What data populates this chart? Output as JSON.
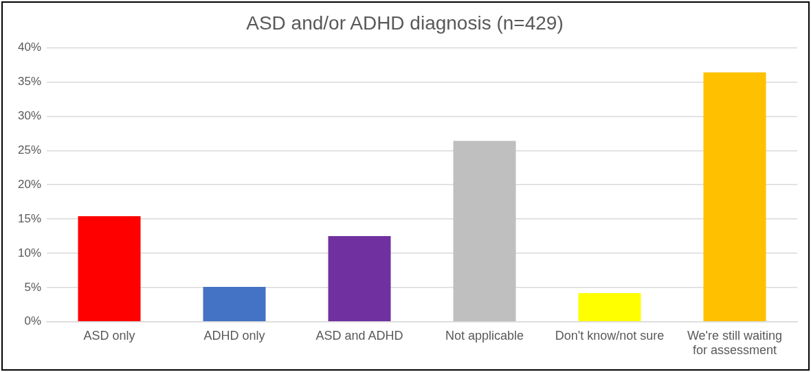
{
  "chart_data": {
    "type": "bar",
    "title": "ASD and/or ADHD diagnosis (n=429)",
    "categories": [
      "ASD only",
      "ADHD only",
      "ASD and ADHD",
      "Not applicable",
      "Don't know/not sure",
      "We're still waiting for assessment"
    ],
    "values": [
      15.4,
      5.1,
      12.5,
      26.4,
      4.2,
      36.4
    ],
    "colors": [
      "#ff0000",
      "#4472c4",
      "#7030a0",
      "#bfbfbf",
      "#ffff00",
      "#ffc000"
    ],
    "ylim": [
      0,
      40
    ],
    "yticks": [
      {
        "value": 0,
        "label": "0%"
      },
      {
        "value": 5,
        "label": "5%"
      },
      {
        "value": 10,
        "label": "10%"
      },
      {
        "value": 15,
        "label": "15%"
      },
      {
        "value": 20,
        "label": "20%"
      },
      {
        "value": 25,
        "label": "25%"
      },
      {
        "value": 30,
        "label": "30%"
      },
      {
        "value": 35,
        "label": "35%"
      },
      {
        "value": 40,
        "label": "40%"
      }
    ],
    "grid": "y",
    "legend": false
  }
}
